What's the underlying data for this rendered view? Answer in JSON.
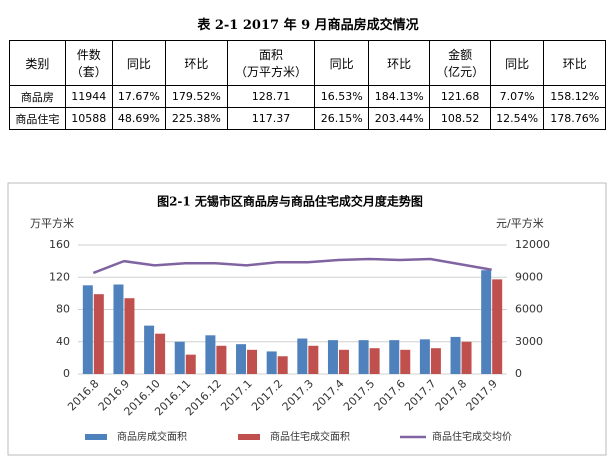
{
  "table": {
    "title": "表 2-1   2017 年 9 月商品房成交情况",
    "header": [
      "类别",
      "件数\n（套）",
      "同比",
      "环比",
      "面积\n（万平方米）",
      "同比",
      "环比",
      "金额\n（亿元）",
      "同比",
      "环比"
    ],
    "rows": [
      [
        "商品房",
        "11944",
        "17.67%",
        "179.52%",
        "128.71",
        "16.53%",
        "184.13%",
        "121.68",
        "7.07%",
        "158.12%"
      ],
      [
        "商品住宅",
        "10588",
        "48.69%",
        "225.38%",
        "117.37",
        "26.15%",
        "203.44%",
        "108.52",
        "12.54%",
        "178.76%"
      ]
    ]
  },
  "chart_data": {
    "type": "bar",
    "title": "图2-1 无锡市区商品房与商品住宅成交月度走势图",
    "y_label": "万平方米",
    "y2_label": "元/平方米",
    "categories": [
      "2016.8",
      "2016.9",
      "2016.10",
      "2016.11",
      "2016.12",
      "2017.1",
      "2017.2",
      "2017.3",
      "2017.4",
      "2017.5",
      "2017.6",
      "2017.7",
      "2017.8",
      "2017.9"
    ],
    "series": [
      {
        "name": "商品房成交面积",
        "type": "bar",
        "color": "#4f81bd",
        "values": [
          110,
          111,
          60,
          40,
          48,
          37,
          28,
          44,
          42,
          42,
          42,
          43,
          46,
          128.71
        ]
      },
      {
        "name": "商品住宅成交面积",
        "type": "bar",
        "color": "#c0504d",
        "values": [
          99,
          94,
          50,
          24,
          35,
          30,
          22,
          35,
          30,
          32,
          30,
          32,
          40,
          117.37
        ]
      },
      {
        "name": "商品住宅成交均价",
        "type": "line",
        "axis": "y2",
        "color": "#8064a2",
        "values": [
          9400,
          10500,
          10100,
          10300,
          10300,
          10100,
          10400,
          10400,
          10600,
          10700,
          10600,
          10700,
          10200,
          9700
        ]
      }
    ],
    "ylim": [
      0,
      160
    ],
    "yticks": [
      0,
      40,
      80,
      120,
      160
    ],
    "y2lim": [
      0,
      12000
    ],
    "y2ticks": [
      0,
      3000,
      6000,
      9000,
      12000
    ],
    "grid": true,
    "legend": "bottom"
  }
}
